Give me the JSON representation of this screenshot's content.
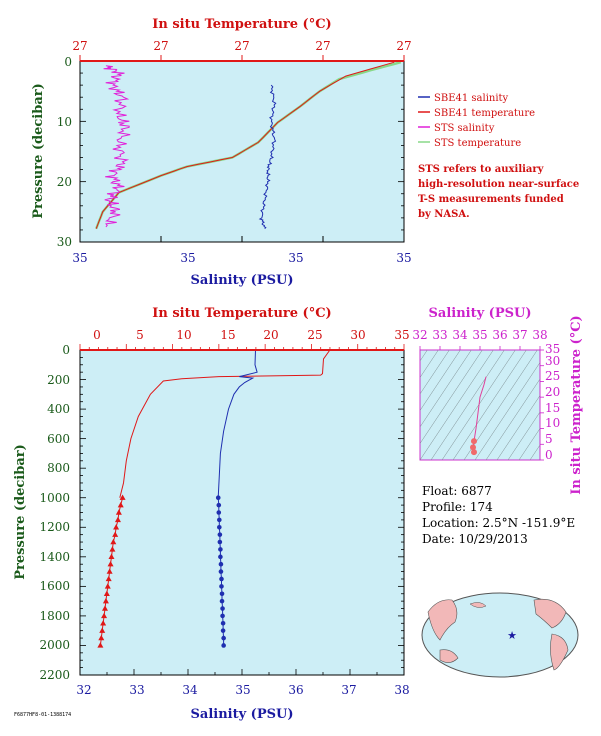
{
  "chart_data": [
    {
      "type": "line",
      "panel": "near-surface",
      "top_axis_label": "In situ Temperature (°C)",
      "top_ticks": [
        "27",
        "27",
        "27",
        "27",
        "27",
        "27"
      ],
      "bottom_axis_label": "Salinity (PSU)",
      "bottom_ticks": [
        "35",
        "35",
        "35",
        "35",
        "35"
      ],
      "ylabel": "Pressure (decibar)",
      "y_ticks": [
        "0",
        "10",
        "20",
        "30"
      ],
      "ylim": [
        0,
        30
      ],
      "colors": {
        "background": "#cdeef6",
        "sbe_salinity": "#1f2fb0",
        "sbe_temperature": "#e01818",
        "sts_salinity": "#e020d8",
        "sts_temperature": "#88d888",
        "title": "#d01010",
        "salinity_axis": "#1a1aa0",
        "pressure_axis": "#1a6a1a"
      },
      "series": [
        {
          "name": "SBE41 salinity",
          "values": [
            [
              0.59,
              4
            ],
            [
              0.6,
              7
            ],
            [
              0.59,
              10
            ],
            [
              0.6,
              13
            ],
            [
              0.59,
              16
            ],
            [
              0.58,
              18
            ],
            [
              0.58,
              20
            ],
            [
              0.57,
              23
            ],
            [
              0.56,
              26
            ],
            [
              0.57,
              27.8
            ]
          ]
        },
        {
          "name": "SBE41 temperature",
          "values": [
            [
              0.97,
              0.2
            ],
            [
              0.82,
              2.5
            ],
            [
              0.74,
              5
            ],
            [
              0.68,
              7.5
            ],
            [
              0.61,
              10.2
            ],
            [
              0.55,
              13.5
            ],
            [
              0.47,
              16
            ],
            [
              0.33,
              17.5
            ],
            [
              0.25,
              19
            ],
            [
              0.12,
              21.8
            ],
            [
              0.07,
              25
            ],
            [
              0.05,
              27.8
            ]
          ]
        },
        {
          "name": "STS salinity",
          "values": [
            [
              0.08,
              0.8
            ],
            [
              0.12,
              2
            ],
            [
              0.1,
              4
            ],
            [
              0.13,
              6
            ],
            [
              0.12,
              9
            ],
            [
              0.14,
              11
            ],
            [
              0.12,
              14
            ],
            [
              0.13,
              17
            ],
            [
              0.1,
              19
            ],
            [
              0.12,
              21
            ],
            [
              0.09,
              23
            ],
            [
              0.11,
              25
            ],
            [
              0.08,
              27.5
            ]
          ]
        },
        {
          "name": "STS temperature",
          "values": [
            [
              0.99,
              0.2
            ],
            [
              0.9,
              1.5
            ],
            [
              0.8,
              3
            ],
            [
              0.74,
              5
            ],
            [
              0.68,
              7.5
            ],
            [
              0.61,
              10.2
            ],
            [
              0.55,
              13.5
            ],
            [
              0.47,
              16
            ],
            [
              0.33,
              17.5
            ],
            [
              0.25,
              19
            ],
            [
              0.12,
              21.8
            ],
            [
              0.07,
              25
            ],
            [
              0.05,
              27.8
            ]
          ]
        }
      ],
      "legend": [
        {
          "label": "SBE41 salinity",
          "color": "#1f2fb0"
        },
        {
          "label": "SBE41 temperature",
          "color": "#e01818"
        },
        {
          "label": "STS salinity",
          "color": "#e020d8"
        },
        {
          "label": "STS temperature",
          "color": "#88d888"
        }
      ],
      "note": [
        "STS refers to auxiliary",
        "high-resolution near-surface",
        "T-S measurements funded",
        "by NASA."
      ]
    },
    {
      "type": "line",
      "panel": "full-profile",
      "top_axis_label": "In situ Temperature (°C)",
      "top_ticks": [
        "0",
        "5",
        "10",
        "15",
        "20",
        "25",
        "30",
        "35"
      ],
      "xlim_top": [
        0,
        35
      ],
      "bottom_axis_label": "Salinity (PSU)",
      "bottom_ticks": [
        "32",
        "33",
        "34",
        "35",
        "36",
        "37",
        "38"
      ],
      "xlim_bottom": [
        32,
        38
      ],
      "ylabel": "Pressure (decibar)",
      "y_ticks": [
        "0",
        "200",
        "400",
        "600",
        "800",
        "1000",
        "1200",
        "1400",
        "1600",
        "1800",
        "2000",
        "2200"
      ],
      "ylim": [
        0,
        2200
      ],
      "series": [
        {
          "name": "temperature",
          "axis": "top",
          "values": [
            [
              27,
              0
            ],
            [
              26.3,
              60
            ],
            [
              26.2,
              160
            ],
            [
              26,
              170
            ],
            [
              15,
              180
            ],
            [
              11,
              195
            ],
            [
              9,
              210
            ],
            [
              7.6,
              300
            ],
            [
              6.3,
              450
            ],
            [
              5.5,
              600
            ],
            [
              5.0,
              750
            ],
            [
              4.7,
              900
            ],
            [
              4.3,
              1000
            ]
          ],
          "markers": [
            [
              4.6,
              1000
            ],
            [
              4.4,
              1050
            ],
            [
              4.2,
              1100
            ],
            [
              4.1,
              1150
            ],
            [
              3.9,
              1200
            ],
            [
              3.8,
              1250
            ],
            [
              3.6,
              1300
            ],
            [
              3.5,
              1350
            ],
            [
              3.4,
              1400
            ],
            [
              3.3,
              1450
            ],
            [
              3.2,
              1500
            ],
            [
              3.1,
              1550
            ],
            [
              3.0,
              1600
            ],
            [
              2.9,
              1650
            ],
            [
              2.8,
              1700
            ],
            [
              2.7,
              1750
            ],
            [
              2.6,
              1800
            ],
            [
              2.5,
              1850
            ],
            [
              2.4,
              1900
            ],
            [
              2.3,
              1950
            ],
            [
              2.2,
              2000
            ]
          ]
        },
        {
          "name": "salinity",
          "axis": "bottom",
          "values": [
            [
              35.25,
              0
            ],
            [
              35.24,
              100
            ],
            [
              35.28,
              150
            ],
            [
              34.95,
              180
            ],
            [
              35.2,
              190
            ],
            [
              35.05,
              220
            ],
            [
              34.95,
              250
            ],
            [
              34.85,
              300
            ],
            [
              34.75,
              400
            ],
            [
              34.66,
              550
            ],
            [
              34.6,
              700
            ],
            [
              34.58,
              850
            ],
            [
              34.56,
              1000
            ]
          ],
          "markers": [
            [
              34.56,
              1000
            ],
            [
              34.57,
              1050
            ],
            [
              34.57,
              1100
            ],
            [
              34.58,
              1150
            ],
            [
              34.58,
              1200
            ],
            [
              34.59,
              1250
            ],
            [
              34.59,
              1300
            ],
            [
              34.6,
              1350
            ],
            [
              34.6,
              1400
            ],
            [
              34.61,
              1450
            ],
            [
              34.61,
              1500
            ],
            [
              34.62,
              1550
            ],
            [
              34.62,
              1600
            ],
            [
              34.63,
              1650
            ],
            [
              34.63,
              1700
            ],
            [
              34.64,
              1750
            ],
            [
              34.64,
              1800
            ],
            [
              34.65,
              1850
            ],
            [
              34.65,
              1900
            ],
            [
              34.66,
              1950
            ],
            [
              34.66,
              2000
            ]
          ]
        }
      ]
    },
    {
      "type": "scatter",
      "panel": "T-S diagram",
      "top_axis_label": "Salinity (PSU)",
      "top_ticks": [
        "32",
        "33",
        "34",
        "35",
        "36",
        "37",
        "38"
      ],
      "xlim": [
        32,
        38
      ],
      "right_axis_label": "In situ Temperature (°C)",
      "right_ticks": [
        "0",
        "5",
        "10",
        "15",
        "20",
        "25",
        "30",
        "35"
      ],
      "ylim": [
        0,
        35
      ],
      "series": [
        {
          "name": "profile",
          "values": [
            [
              35.3,
              26.5
            ],
            [
              35.2,
              24
            ],
            [
              35.0,
              20
            ],
            [
              34.9,
              15
            ],
            [
              34.8,
              10
            ],
            [
              34.7,
              6
            ],
            [
              34.65,
              4
            ],
            [
              34.7,
              2.5
            ]
          ]
        }
      ]
    }
  ],
  "info": {
    "float": "Float:  6877",
    "profile": "Profile:  174",
    "location": "Location:  2.5°N  -151.9°E",
    "date": "Date:  10/29/2013"
  },
  "footer": "F6877HF8-01-1388174"
}
